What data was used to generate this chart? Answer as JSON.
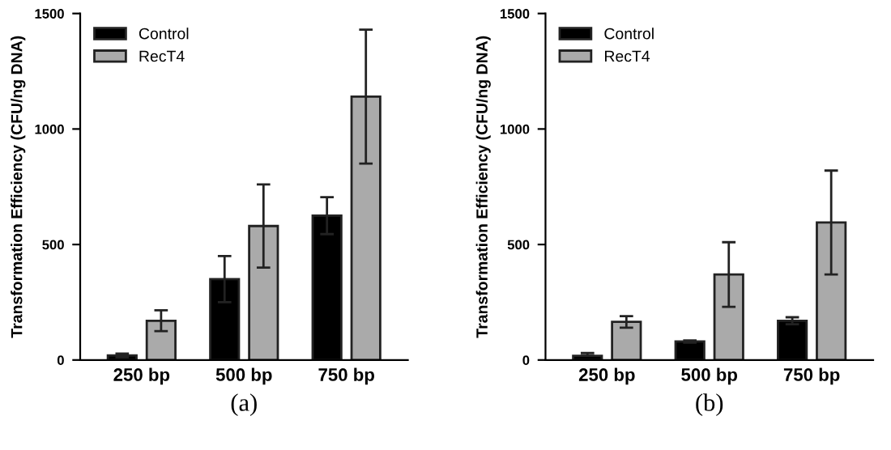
{
  "chart_data": [
    {
      "type": "bar",
      "xlabel": "(a)",
      "ylabel": "Transformation Efficiency (CFU/ng DNA)",
      "categories": [
        "250 bp",
        "500 bp",
        "750 bp"
      ],
      "series": [
        {
          "name": "Control",
          "color": "#000000",
          "values": [
            20,
            350,
            625
          ],
          "errors": [
            8,
            100,
            80
          ]
        },
        {
          "name": "RecT4",
          "color": "#aaaaaa",
          "values": [
            170,
            580,
            1140
          ],
          "errors": [
            45,
            180,
            290
          ]
        }
      ],
      "ylim": [
        0,
        1500
      ],
      "yticks": [
        0,
        500,
        1000,
        1500
      ],
      "legend": "top left",
      "grid": false
    },
    {
      "type": "bar",
      "xlabel": "(b)",
      "ylabel": "Transformation Efficiency (CFU/ng DNA)",
      "categories": [
        "250 bp",
        "500 bp",
        "750 bp"
      ],
      "series": [
        {
          "name": "Control",
          "color": "#000000",
          "values": [
            18,
            80,
            170
          ],
          "errors": [
            [
              0,
              12
            ],
            5,
            15
          ]
        },
        {
          "name": "RecT4",
          "color": "#aaaaaa",
          "values": [
            165,
            370,
            595
          ],
          "errors": [
            25,
            140,
            225
          ]
        }
      ],
      "ylim": [
        0,
        1500
      ],
      "yticks": [
        0,
        500,
        1000,
        1500
      ],
      "legend": "top left",
      "grid": false
    }
  ]
}
